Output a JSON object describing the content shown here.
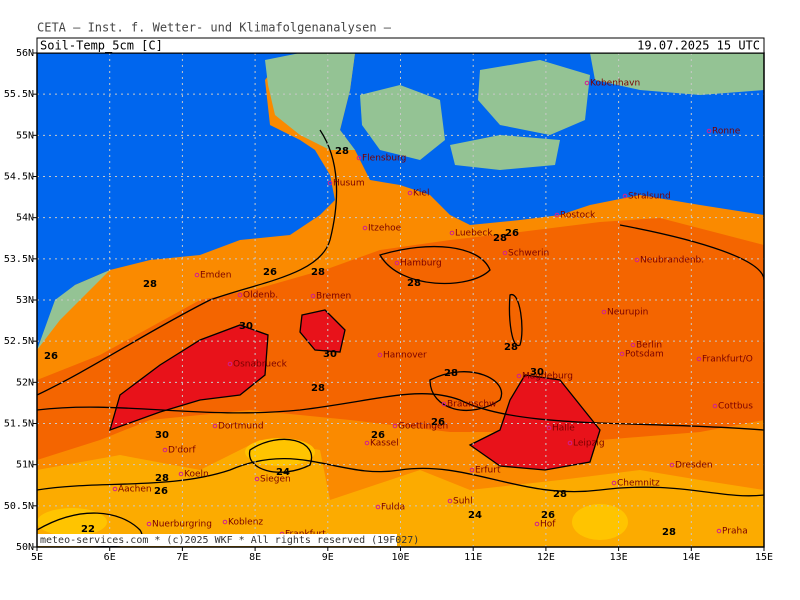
{
  "header": {
    "institute": "CETA — Inst. f. Wetter- und Klimafolgenanalysen —",
    "parameter": "Soil-Temp_5cm [C]",
    "valid": "19.07.2025 15 UTC"
  },
  "map": {
    "lon_ticks": [
      {
        "value": 5,
        "label": "5E"
      },
      {
        "value": 6,
        "label": "6E"
      },
      {
        "value": 7,
        "label": "7E"
      },
      {
        "value": 8,
        "label": "8E"
      },
      {
        "value": 9,
        "label": "9E"
      },
      {
        "value": 10,
        "label": "10E"
      },
      {
        "value": 11,
        "label": "11E"
      },
      {
        "value": 12,
        "label": "12E"
      },
      {
        "value": 13,
        "label": "13E"
      },
      {
        "value": 14,
        "label": "14E"
      },
      {
        "value": 15,
        "label": "15E"
      }
    ],
    "lat_ticks": [
      {
        "value": 50,
        "label": "50N"
      },
      {
        "value": 50.5,
        "label": "50.5N"
      },
      {
        "value": 51,
        "label": "51N"
      },
      {
        "value": 51.5,
        "label": "51.5N"
      },
      {
        "value": 52,
        "label": "52N"
      },
      {
        "value": 52.5,
        "label": "52.5N"
      },
      {
        "value": 53,
        "label": "53N"
      },
      {
        "value": 53.5,
        "label": "53.5N"
      },
      {
        "value": 54,
        "label": "54N"
      },
      {
        "value": 54.5,
        "label": "54.5N"
      },
      {
        "value": 55,
        "label": "55N"
      },
      {
        "value": 55.5,
        "label": "55.5N"
      },
      {
        "value": 56,
        "label": "56N"
      }
    ],
    "lon_lim": [
      5,
      15
    ],
    "lat_lim": [
      50,
      56
    ],
    "cities": [
      "Kobenhavn",
      "Ronne",
      "Flensburg",
      "Husum",
      "Kiel",
      "Stralsund",
      "Rostock",
      "Itzehoe",
      "Luebeck",
      "Schwerin",
      "Hamburg",
      "Emden",
      "Oldenb.",
      "Bremen",
      "Neubrandenb.",
      "Neurupin",
      "Berlin",
      "Potsdam",
      "Frankfurt/O",
      "Osnabrueck",
      "Hannover",
      "Magdeburg",
      "Braunschw",
      "Cottbus",
      "Dortmund",
      "D'dorf",
      "Goettingen",
      "Kassel",
      "Halle",
      "Leipzig",
      "Koeln",
      "Siegen",
      "Erfurt",
      "Dresden",
      "Chemnitz",
      "Aachen",
      "Fulda",
      "Suhl",
      "Hof",
      "Nuerburgring",
      "Koblenz",
      "Frankfurt",
      "Praha"
    ],
    "contour_labels": [
      28,
      26,
      28,
      28,
      28,
      28,
      26,
      26,
      30,
      30,
      28,
      28,
      28,
      30,
      30,
      28,
      26,
      26,
      26,
      24,
      28,
      24,
      26,
      22,
      28
    ]
  },
  "footer": "meteo-services.com * (c)2025 WKF * All rights reserved (19F027)"
}
